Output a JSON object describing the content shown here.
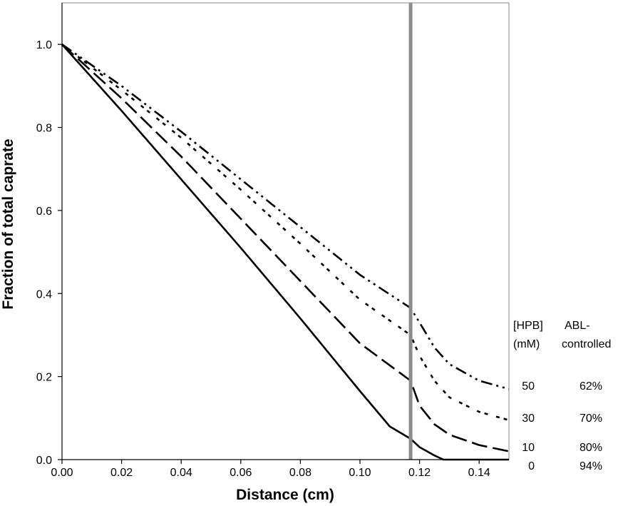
{
  "chart_data": {
    "type": "line",
    "xlabel": "Distance (cm)",
    "ylabel": "Fraction of total caprate",
    "xlim": [
      0,
      0.15
    ],
    "ylim": [
      0,
      1.1
    ],
    "x_ticks": [
      "0.00",
      "0.02",
      "0.04",
      "0.06",
      "0.08",
      "0.10",
      "0.12",
      "0.14"
    ],
    "y_ticks": [
      "0.0",
      "0.2",
      "0.4",
      "0.6",
      "0.8",
      "1.0"
    ],
    "grid": false,
    "vertical_line_x": 0.117,
    "legend_headers": {
      "col1": [
        "[HPB]",
        "(mM)"
      ],
      "col2": [
        "ABL-",
        "controlled"
      ]
    },
    "series": [
      {
        "hpb": "0",
        "abl": "94%",
        "x": [
          0,
          0.02,
          0.04,
          0.06,
          0.08,
          0.1,
          0.11,
          0.117,
          0.12,
          0.125,
          0.128,
          0.135,
          0.15
        ],
        "y": [
          1.0,
          0.84,
          0.675,
          0.51,
          0.34,
          0.165,
          0.08,
          0.05,
          0.03,
          0.01,
          0.0,
          0.0,
          0.0
        ]
      },
      {
        "hpb": "10",
        "abl": "80%",
        "x": [
          0,
          0.02,
          0.04,
          0.06,
          0.08,
          0.1,
          0.117,
          0.12,
          0.125,
          0.13,
          0.14,
          0.15
        ],
        "y": [
          1.0,
          0.87,
          0.73,
          0.58,
          0.43,
          0.28,
          0.19,
          0.13,
          0.085,
          0.06,
          0.035,
          0.02
        ]
      },
      {
        "hpb": "30",
        "abl": "70%",
        "x": [
          0,
          0.02,
          0.04,
          0.06,
          0.08,
          0.1,
          0.117,
          0.12,
          0.125,
          0.13,
          0.14,
          0.15
        ],
        "y": [
          1.0,
          0.89,
          0.775,
          0.65,
          0.52,
          0.385,
          0.3,
          0.25,
          0.19,
          0.15,
          0.115,
          0.095
        ]
      },
      {
        "hpb": "50",
        "abl": "62%",
        "x": [
          0,
          0.02,
          0.04,
          0.06,
          0.08,
          0.1,
          0.117,
          0.12,
          0.125,
          0.13,
          0.14,
          0.15
        ],
        "y": [
          1.0,
          0.9,
          0.79,
          0.675,
          0.56,
          0.445,
          0.365,
          0.33,
          0.27,
          0.23,
          0.19,
          0.17
        ]
      }
    ]
  }
}
